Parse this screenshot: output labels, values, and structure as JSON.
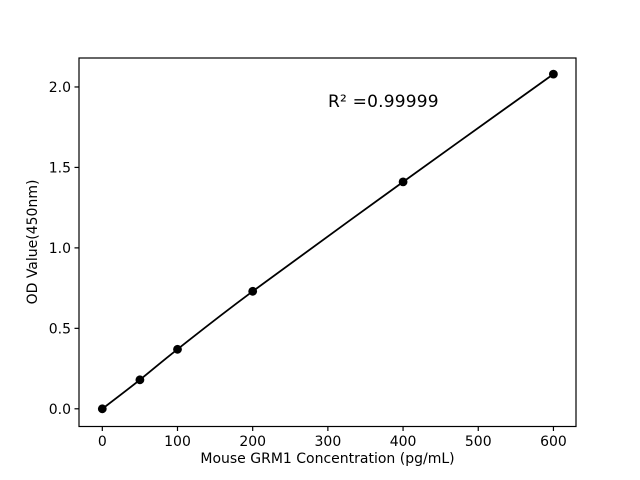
{
  "chart_data": {
    "type": "line",
    "title": "",
    "xlabel": "Mouse GRM1 Concentration (pg/mL)",
    "ylabel": "OD Value(450nm)",
    "annotation": "R² =0.99999",
    "x": [
      0,
      50,
      100,
      200,
      400,
      600
    ],
    "y": [
      0.0,
      0.18,
      0.37,
      0.73,
      1.41,
      2.08
    ],
    "xticks": [
      0,
      100,
      200,
      300,
      400,
      500,
      600
    ],
    "ytick_labels": [
      "0.0",
      "0.5",
      "1.0",
      "1.5",
      "2.0"
    ],
    "xlim": [
      -31,
      630
    ],
    "ylim": [
      -0.11,
      2.18
    ],
    "grid": false,
    "legend": null,
    "marker": "circle",
    "line_color": "#000000",
    "marker_color": "#000000",
    "axis_color": "#000000",
    "text_color": "#000000",
    "background": "#ffffff"
  }
}
